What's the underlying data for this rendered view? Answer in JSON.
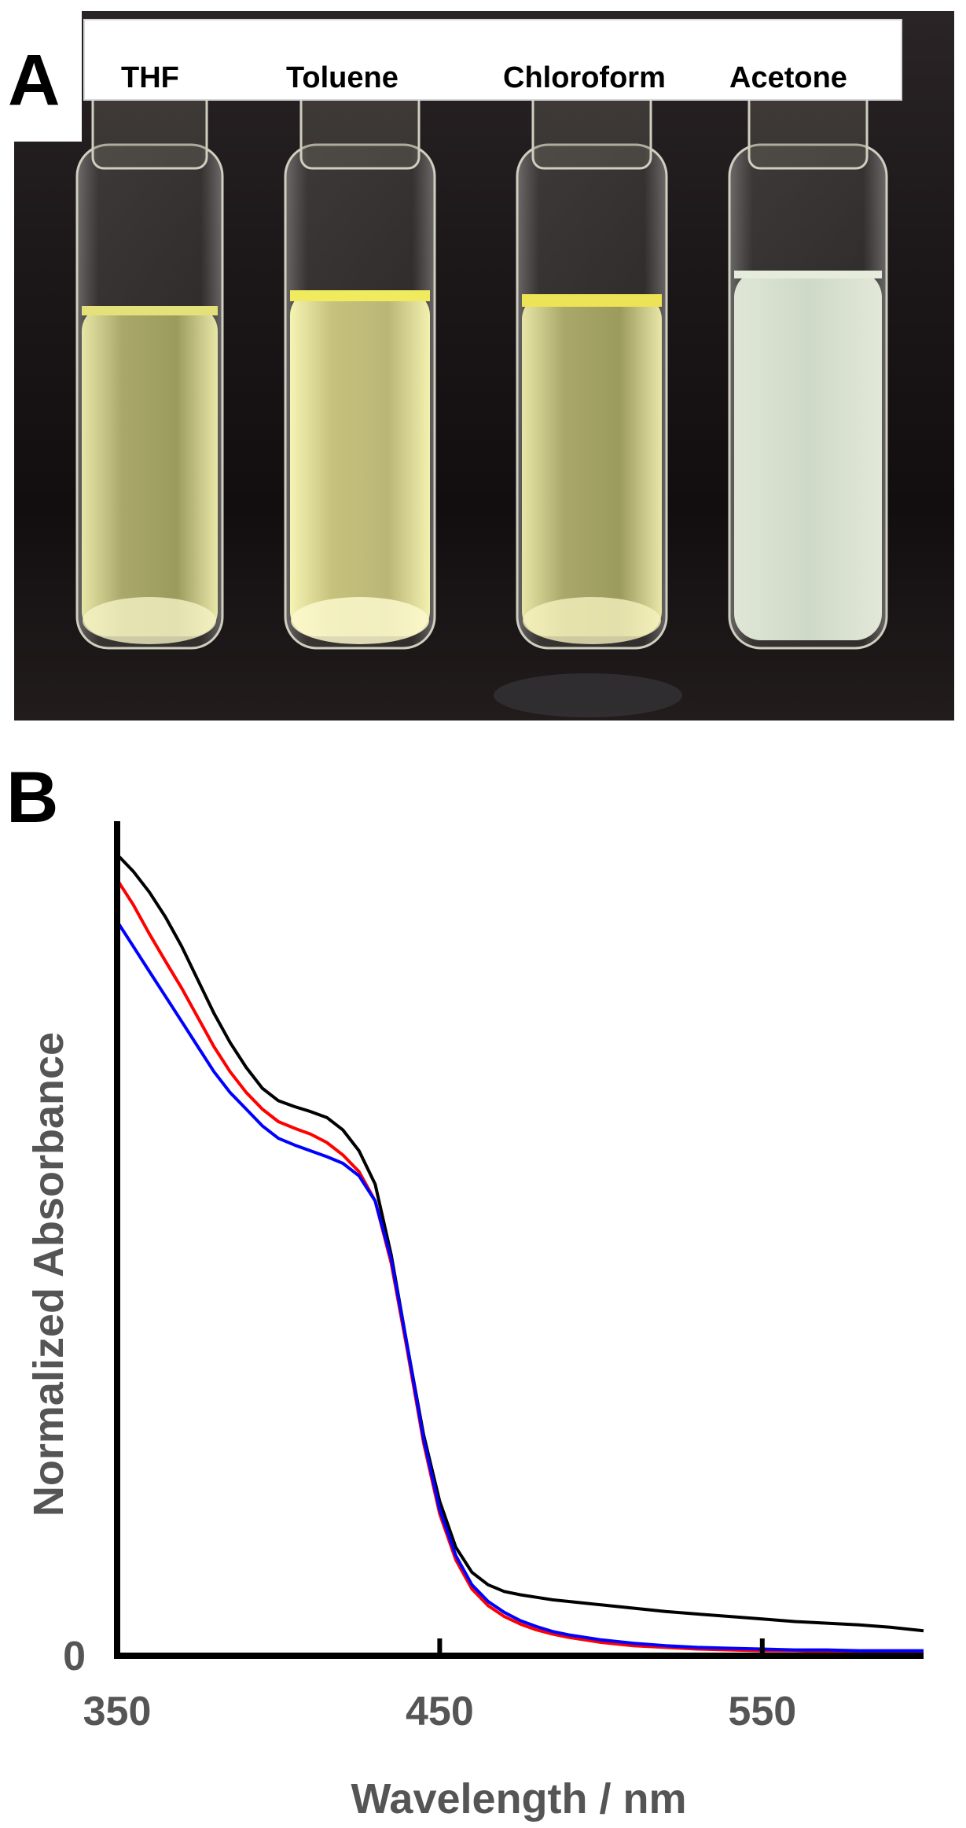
{
  "panel_a": {
    "letter": "A",
    "labels": [
      "THF",
      "Toluene",
      "Chloroform",
      "Acetone"
    ]
  },
  "panel_b": {
    "letter": "B"
  },
  "chart_data": {
    "type": "line",
    "xlabel": "Wavelength / nm",
    "ylabel": "Normalized Absorbance",
    "xlim": [
      350,
      600
    ],
    "ylim": [
      0,
      1.0
    ],
    "x_ticks": [
      350,
      450,
      550
    ],
    "y_ticks": [
      0
    ],
    "x_tick_labels": [
      "350",
      "450",
      "550"
    ],
    "y_tick_labels": [
      "0"
    ],
    "grid": false,
    "series": [
      {
        "color": "#000000",
        "x": [
          350,
          355,
          360,
          365,
          370,
          375,
          380,
          385,
          390,
          395,
          400,
          405,
          410,
          415,
          420,
          425,
          430,
          435,
          440,
          445,
          450,
          455,
          460,
          465,
          470,
          475,
          480,
          485,
          490,
          500,
          510,
          520,
          530,
          540,
          550,
          560,
          570,
          580,
          590,
          600
        ],
        "y": [
          0.96,
          0.94,
          0.915,
          0.885,
          0.85,
          0.81,
          0.77,
          0.735,
          0.705,
          0.68,
          0.665,
          0.658,
          0.652,
          0.645,
          0.63,
          0.605,
          0.565,
          0.48,
          0.37,
          0.265,
          0.185,
          0.13,
          0.1,
          0.085,
          0.077,
          0.073,
          0.07,
          0.067,
          0.065,
          0.061,
          0.057,
          0.053,
          0.05,
          0.047,
          0.044,
          0.041,
          0.039,
          0.037,
          0.034,
          0.03
        ]
      },
      {
        "color": "#ff0000",
        "x": [
          350,
          355,
          360,
          365,
          370,
          375,
          380,
          385,
          390,
          395,
          400,
          405,
          410,
          415,
          420,
          425,
          430,
          435,
          440,
          445,
          450,
          455,
          460,
          465,
          470,
          475,
          480,
          485,
          490,
          500,
          510,
          520,
          530,
          540,
          550,
          560,
          570,
          580,
          590,
          600
        ],
        "y": [
          0.93,
          0.9,
          0.865,
          0.832,
          0.8,
          0.765,
          0.73,
          0.7,
          0.675,
          0.655,
          0.64,
          0.632,
          0.625,
          0.615,
          0.6,
          0.58,
          0.545,
          0.47,
          0.365,
          0.255,
          0.17,
          0.115,
          0.08,
          0.06,
          0.047,
          0.038,
          0.031,
          0.026,
          0.022,
          0.016,
          0.012,
          0.01,
          0.008,
          0.007,
          0.006,
          0.006,
          0.005,
          0.005,
          0.005,
          0.005
        ]
      },
      {
        "color": "#0000ff",
        "x": [
          350,
          355,
          360,
          365,
          370,
          375,
          380,
          385,
          390,
          395,
          400,
          405,
          410,
          415,
          420,
          425,
          430,
          435,
          440,
          445,
          450,
          455,
          460,
          465,
          470,
          475,
          480,
          485,
          490,
          500,
          510,
          520,
          530,
          540,
          550,
          560,
          570,
          580,
          590,
          600
        ],
        "y": [
          0.88,
          0.85,
          0.82,
          0.79,
          0.76,
          0.73,
          0.7,
          0.675,
          0.655,
          0.635,
          0.62,
          0.612,
          0.605,
          0.598,
          0.59,
          0.575,
          0.545,
          0.475,
          0.37,
          0.26,
          0.175,
          0.12,
          0.085,
          0.065,
          0.052,
          0.042,
          0.035,
          0.029,
          0.025,
          0.019,
          0.015,
          0.012,
          0.01,
          0.009,
          0.008,
          0.007,
          0.007,
          0.006,
          0.006,
          0.006
        ]
      }
    ]
  }
}
